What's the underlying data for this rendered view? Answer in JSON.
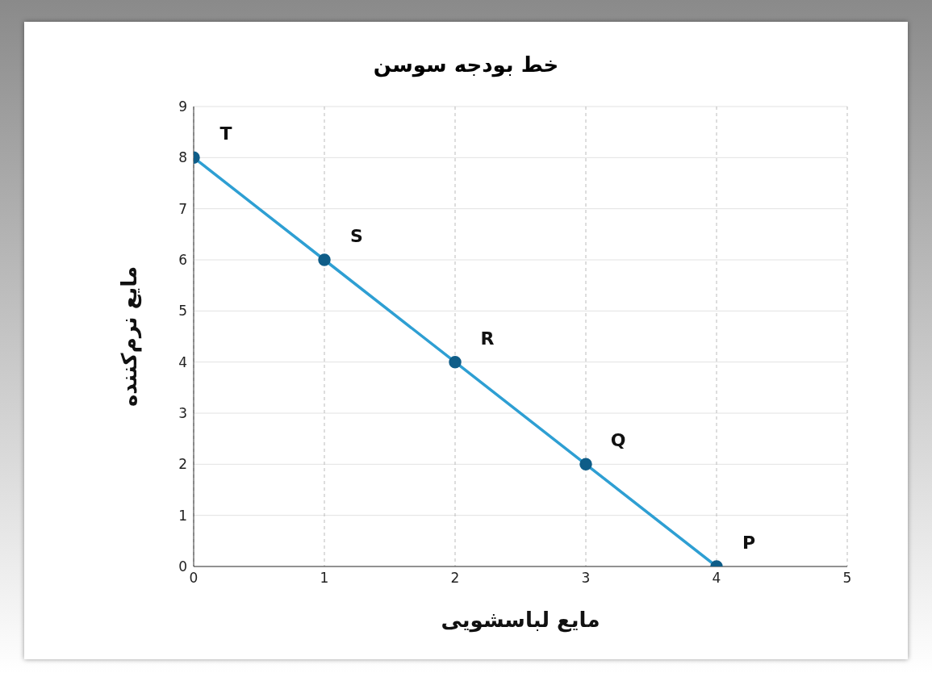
{
  "chart_data": {
    "type": "line",
    "title": "خط بودجه سوسن",
    "xlabel": "مایع لباسشویی",
    "ylabel": "مایع نرم‌کننده",
    "x": [
      0,
      1,
      2,
      3,
      4
    ],
    "series": [
      {
        "color": "#2e9fd3",
        "values": [
          8,
          6,
          4,
          2,
          0
        ]
      }
    ],
    "xlim": [
      0,
      5
    ],
    "xticks": [
      0,
      1,
      2,
      3,
      4,
      5
    ],
    "ylim": [
      0,
      9
    ],
    "yticks": [
      0,
      1,
      2,
      3,
      4,
      5,
      6,
      7,
      8,
      9
    ],
    "grid": true,
    "marker": "circle",
    "line_style": "solid",
    "legend": false,
    "annotations": [
      {
        "text": "T",
        "x": 0,
        "y": 8
      },
      {
        "text": "S",
        "x": 1,
        "y": 6
      },
      {
        "text": "R",
        "x": 2,
        "y": 4
      },
      {
        "text": "Q",
        "x": 3,
        "y": 2
      },
      {
        "text": "P",
        "x": 4,
        "y": 0
      }
    ]
  }
}
